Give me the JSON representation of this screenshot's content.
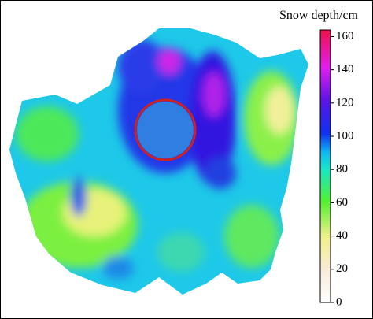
{
  "colorbar": {
    "title": "Snow depth/cm",
    "lim": [
      0,
      164
    ],
    "ticks": [
      0,
      20,
      40,
      60,
      80,
      100,
      120,
      140,
      160
    ]
  }
}
